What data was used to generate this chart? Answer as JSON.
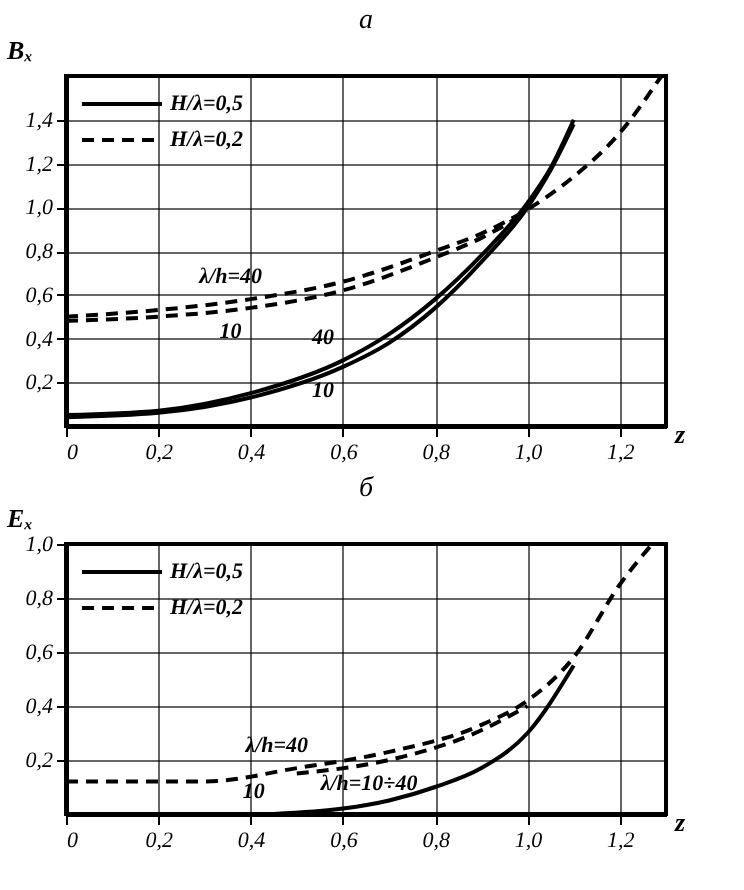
{
  "chart_data": [
    {
      "type": "line",
      "title": "a",
      "xlabel": "z",
      "ylabel": "Bₓ",
      "xlim": [
        0,
        1.3
      ],
      "ylim": [
        0,
        1.6
      ],
      "xticks": [
        0,
        {
          "value": 0.2,
          "label": "0,2"
        },
        {
          "value": 0.4,
          "label": "0,4"
        },
        {
          "value": 0.6,
          "label": "0,6"
        },
        {
          "value": 0.8,
          "label": "0,8"
        },
        {
          "value": 1.0,
          "label": "1,0"
        },
        {
          "value": 1.2,
          "label": "1,2"
        }
      ],
      "yticks": [
        {
          "value": 0.2,
          "label": "0,2"
        },
        {
          "value": 0.4,
          "label": "0,4"
        },
        {
          "value": 0.6,
          "label": "0,6"
        },
        {
          "value": 0.8,
          "label": "0,8"
        },
        {
          "value": 1.0,
          "label": "1,0"
        },
        {
          "value": 1.2,
          "label": "1,2"
        },
        {
          "value": 1.4,
          "label": "1,4"
        }
      ],
      "grid": true,
      "legend": "top left",
      "series": [
        {
          "name": "H/λ=0,5",
          "color": "#000000",
          "line_style": "solid",
          "x": [
            0,
            0.2,
            0.4,
            0.6,
            0.7,
            0.8,
            0.9,
            1.0,
            1.05,
            1.1
          ],
          "values": [
            0.05,
            0.07,
            0.15,
            0.3,
            0.42,
            0.58,
            0.78,
            1.02,
            1.18,
            1.4
          ]
        },
        {
          "color": "#000000",
          "line_style": "solid",
          "x": [
            0,
            0.2,
            0.4,
            0.6,
            0.7,
            0.8,
            0.9,
            1.0,
            1.05,
            1.1
          ],
          "values": [
            0.04,
            0.06,
            0.13,
            0.27,
            0.38,
            0.54,
            0.75,
            1.0,
            1.17,
            1.38
          ]
        },
        {
          "name": "H/λ=0,2",
          "color": "#000000",
          "line_style": "dashed",
          "x": [
            0,
            0.2,
            0.4,
            0.6,
            0.8,
            0.9,
            1.0,
            1.1,
            1.2,
            1.29
          ],
          "values": [
            0.5,
            0.53,
            0.58,
            0.66,
            0.8,
            0.88,
            0.99,
            1.14,
            1.34,
            1.6
          ]
        },
        {
          "color": "#000000",
          "line_style": "dashed",
          "x": [
            0,
            0.2,
            0.4,
            0.6,
            0.8,
            0.9,
            1.0
          ],
          "values": [
            0.48,
            0.5,
            0.54,
            0.62,
            0.77,
            0.86,
            0.98
          ]
        }
      ],
      "annotations": [
        {
          "text": "λ/h=40",
          "x": 0.4,
          "y": 0.58
        },
        {
          "text": "10",
          "x": 0.4,
          "y": 0.54
        },
        {
          "text": "40",
          "x": 0.6,
          "y": 0.3
        },
        {
          "text": "10",
          "x": 0.6,
          "y": 0.27
        }
      ]
    },
    {
      "type": "line",
      "title": "б",
      "xlabel": "z",
      "ylabel": "Eₓ",
      "xlim": [
        0,
        1.3
      ],
      "ylim": [
        0,
        1.0
      ],
      "xticks": [
        0,
        {
          "value": 0.2,
          "label": "0,2"
        },
        {
          "value": 0.4,
          "label": "0,4"
        },
        {
          "value": 0.6,
          "label": "0,6"
        },
        {
          "value": 0.8,
          "label": "0,8"
        },
        {
          "value": 1.0,
          "label": "1,0"
        },
        {
          "value": 1.2,
          "label": "1,2"
        }
      ],
      "yticks": [
        {
          "value": 0.2,
          "label": "0,2"
        },
        {
          "value": 0.4,
          "label": "0,4"
        },
        {
          "value": 0.6,
          "label": "0,6"
        },
        {
          "value": 0.8,
          "label": "0,8"
        },
        {
          "value": 1.0,
          "label": "1,0"
        }
      ],
      "grid": true,
      "legend": "top left",
      "series": [
        {
          "name": "H/λ=0,5",
          "color": "#000000",
          "line_style": "solid",
          "x": [
            0.45,
            0.6,
            0.7,
            0.8,
            0.9,
            1.0,
            1.1
          ],
          "values": [
            0.0,
            0.02,
            0.05,
            0.1,
            0.17,
            0.3,
            0.55
          ]
        },
        {
          "name": "H/λ=0,2",
          "color": "#000000",
          "line_style": "dashed",
          "x": [
            0,
            0.3,
            0.5,
            0.7,
            0.9,
            1.0,
            1.1,
            1.2,
            1.27
          ],
          "values": [
            0.12,
            0.12,
            0.17,
            0.23,
            0.33,
            0.42,
            0.58,
            0.85,
            1.0
          ]
        },
        {
          "color": "#000000",
          "line_style": "dashed",
          "x": [
            0.5,
            0.7,
            0.9,
            1.0
          ],
          "values": [
            0.15,
            0.2,
            0.31,
            0.4
          ]
        }
      ],
      "annotations": [
        {
          "text": "λ/h=40",
          "x": 0.5,
          "y": 0.17
        },
        {
          "text": "λ/h=10÷40",
          "x": 0.7,
          "y": 0.2
        },
        {
          "text": "10",
          "x": 0.45,
          "y": 0.0
        }
      ]
    }
  ]
}
